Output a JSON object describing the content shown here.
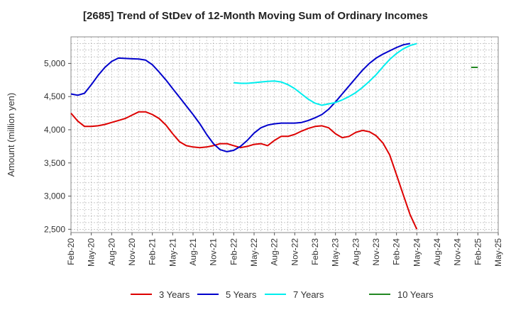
{
  "chart_data": {
    "type": "line",
    "title": "[2685]  Trend of StDev of 12-Month Moving Sum of Ordinary Incomes",
    "xlabel": "",
    "ylabel": "Amount (million yen)",
    "ylim": [
      2450,
      5400
    ],
    "yticks": [
      2500,
      3000,
      3500,
      4000,
      4500,
      5000
    ],
    "ytick_labels": [
      "2,500",
      "3,000",
      "3,500",
      "4,000",
      "4,500",
      "5,000"
    ],
    "xtick_labels": [
      "Feb-20",
      "May-20",
      "Aug-20",
      "Nov-20",
      "Feb-21",
      "May-21",
      "Aug-21",
      "Nov-21",
      "Feb-22",
      "May-22",
      "Aug-22",
      "Nov-22",
      "Feb-23",
      "May-23",
      "Aug-23",
      "Nov-23",
      "Feb-24",
      "May-24",
      "Aug-24",
      "Nov-24",
      "Feb-25",
      "May-25"
    ],
    "grid": true,
    "legend_position": "bottom",
    "series": [
      {
        "name": "3 Years",
        "color": "#dd0000",
        "start_index": 0,
        "values": [
          4250,
          4130,
          4050,
          4050,
          4060,
          4080,
          4110,
          4140,
          4170,
          4220,
          4270,
          4270,
          4230,
          4170,
          4070,
          3940,
          3820,
          3760,
          3740,
          3730,
          3740,
          3760,
          3790,
          3790,
          3760,
          3730,
          3750,
          3780,
          3790,
          3760,
          3840,
          3900,
          3900,
          3930,
          3980,
          4020,
          4050,
          4060,
          4030,
          3940,
          3880,
          3900,
          3960,
          3990,
          3970,
          3910,
          3800,
          3620,
          3320,
          3020,
          2720,
          2500
        ]
      },
      {
        "name": "5 Years",
        "color": "#0000cc",
        "start_index": 0,
        "values": [
          4540,
          4520,
          4550,
          4680,
          4820,
          4940,
          5030,
          5080,
          5075,
          5070,
          5065,
          5050,
          4980,
          4870,
          4750,
          4620,
          4490,
          4360,
          4230,
          4090,
          3930,
          3790,
          3700,
          3670,
          3690,
          3750,
          3840,
          3950,
          4030,
          4070,
          4090,
          4100,
          4100,
          4100,
          4110,
          4140,
          4180,
          4230,
          4310,
          4420,
          4540,
          4660,
          4780,
          4900,
          5000,
          5080,
          5140,
          5190,
          5240,
          5280,
          5300
        ]
      },
      {
        "name": "7 Years",
        "color": "#00eeee",
        "start_index": 24,
        "values": [
          4710,
          4700,
          4700,
          4710,
          4720,
          4730,
          4735,
          4720,
          4680,
          4620,
          4540,
          4460,
          4400,
          4370,
          4390,
          4410,
          4450,
          4500,
          4560,
          4640,
          4730,
          4830,
          4950,
          5060,
          5150,
          5220,
          5270,
          5300
        ]
      },
      {
        "name": "10 Years",
        "color": "#228822",
        "start_index": 59,
        "values": [
          4940,
          4940
        ]
      }
    ]
  }
}
